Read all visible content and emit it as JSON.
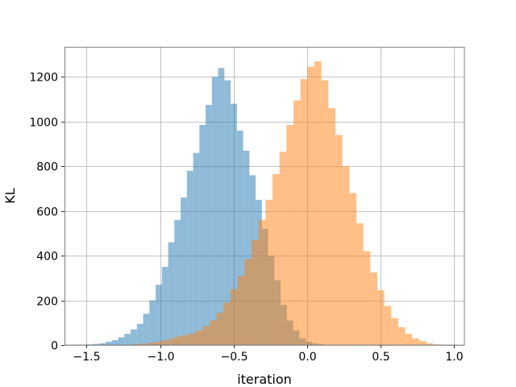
{
  "chart_data": {
    "type": "bar",
    "title": "",
    "xlabel": "iteration",
    "ylabel": "KL",
    "xlim": [
      -1.65,
      1.07
    ],
    "ylim": [
      0,
      1335
    ],
    "grid": true,
    "legend": "none",
    "xticks": [
      -1.5,
      -1.0,
      -0.5,
      0.0,
      0.5,
      1.0
    ],
    "xtick_labels": [
      "−1.5",
      "−1.0",
      "−0.5",
      "0.0",
      "0.5",
      "1.0"
    ],
    "yticks": [
      0,
      200,
      400,
      600,
      800,
      1000,
      1200
    ],
    "ytick_labels": [
      "0",
      "200",
      "400",
      "600",
      "800",
      "1000",
      "1200"
    ],
    "series": [
      {
        "color": "#1f77b4",
        "opacity": 0.5,
        "bin_edges": [
          -1.54,
          -1.4975,
          -1.455,
          -1.4125,
          -1.37,
          -1.3275,
          -1.285,
          -1.2425,
          -1.2,
          -1.1575,
          -1.115,
          -1.0725,
          -1.03,
          -0.9875,
          -0.945,
          -0.9025,
          -0.86,
          -0.8175,
          -0.775,
          -0.7325,
          -0.69,
          -0.6475,
          -0.605,
          -0.5625,
          -0.52,
          -0.4775,
          -0.435,
          -0.3925,
          -0.35,
          -0.3075,
          -0.265,
          -0.2225,
          -0.18,
          -0.1375,
          -0.095,
          -0.0525,
          -0.01,
          0.0325,
          0.075,
          0.1175,
          0.16
        ],
        "counts": [
          2,
          3,
          5,
          8,
          15,
          22,
          35,
          50,
          70,
          95,
          140,
          200,
          270,
          350,
          460,
          560,
          660,
          780,
          860,
          985,
          1075,
          1200,
          1240,
          1185,
          1080,
          960,
          870,
          760,
          650,
          520,
          400,
          290,
          180,
          110,
          65,
          30,
          15,
          8,
          4,
          2
        ]
      },
      {
        "color": "#ff7f0e",
        "opacity": 0.5,
        "bin_edges": [
          -1.28,
          -1.2325,
          -1.185,
          -1.1375,
          -1.09,
          -1.0425,
          -0.995,
          -0.9475,
          -0.9,
          -0.8525,
          -0.805,
          -0.7575,
          -0.71,
          -0.6625,
          -0.615,
          -0.5675,
          -0.52,
          -0.4725,
          -0.425,
          -0.3775,
          -0.33,
          -0.2825,
          -0.235,
          -0.1875,
          -0.14,
          -0.0925,
          -0.045,
          0.0025,
          0.05,
          0.0975,
          0.145,
          0.1925,
          0.24,
          0.2875,
          0.335,
          0.3825,
          0.43,
          0.4775,
          0.525,
          0.5725,
          0.62,
          0.6675,
          0.715,
          0.7625,
          0.81,
          0.8575,
          0.905
        ],
        "counts": [
          1,
          2,
          4,
          6,
          10,
          15,
          20,
          28,
          38,
          45,
          52,
          65,
          85,
          110,
          145,
          190,
          250,
          310,
          385,
          470,
          560,
          650,
          765,
          865,
          985,
          1095,
          1190,
          1245,
          1270,
          1185,
          1060,
          940,
          800,
          680,
          545,
          420,
          325,
          245,
          175,
          120,
          80,
          50,
          30,
          18,
          8,
          3
        ]
      }
    ]
  }
}
